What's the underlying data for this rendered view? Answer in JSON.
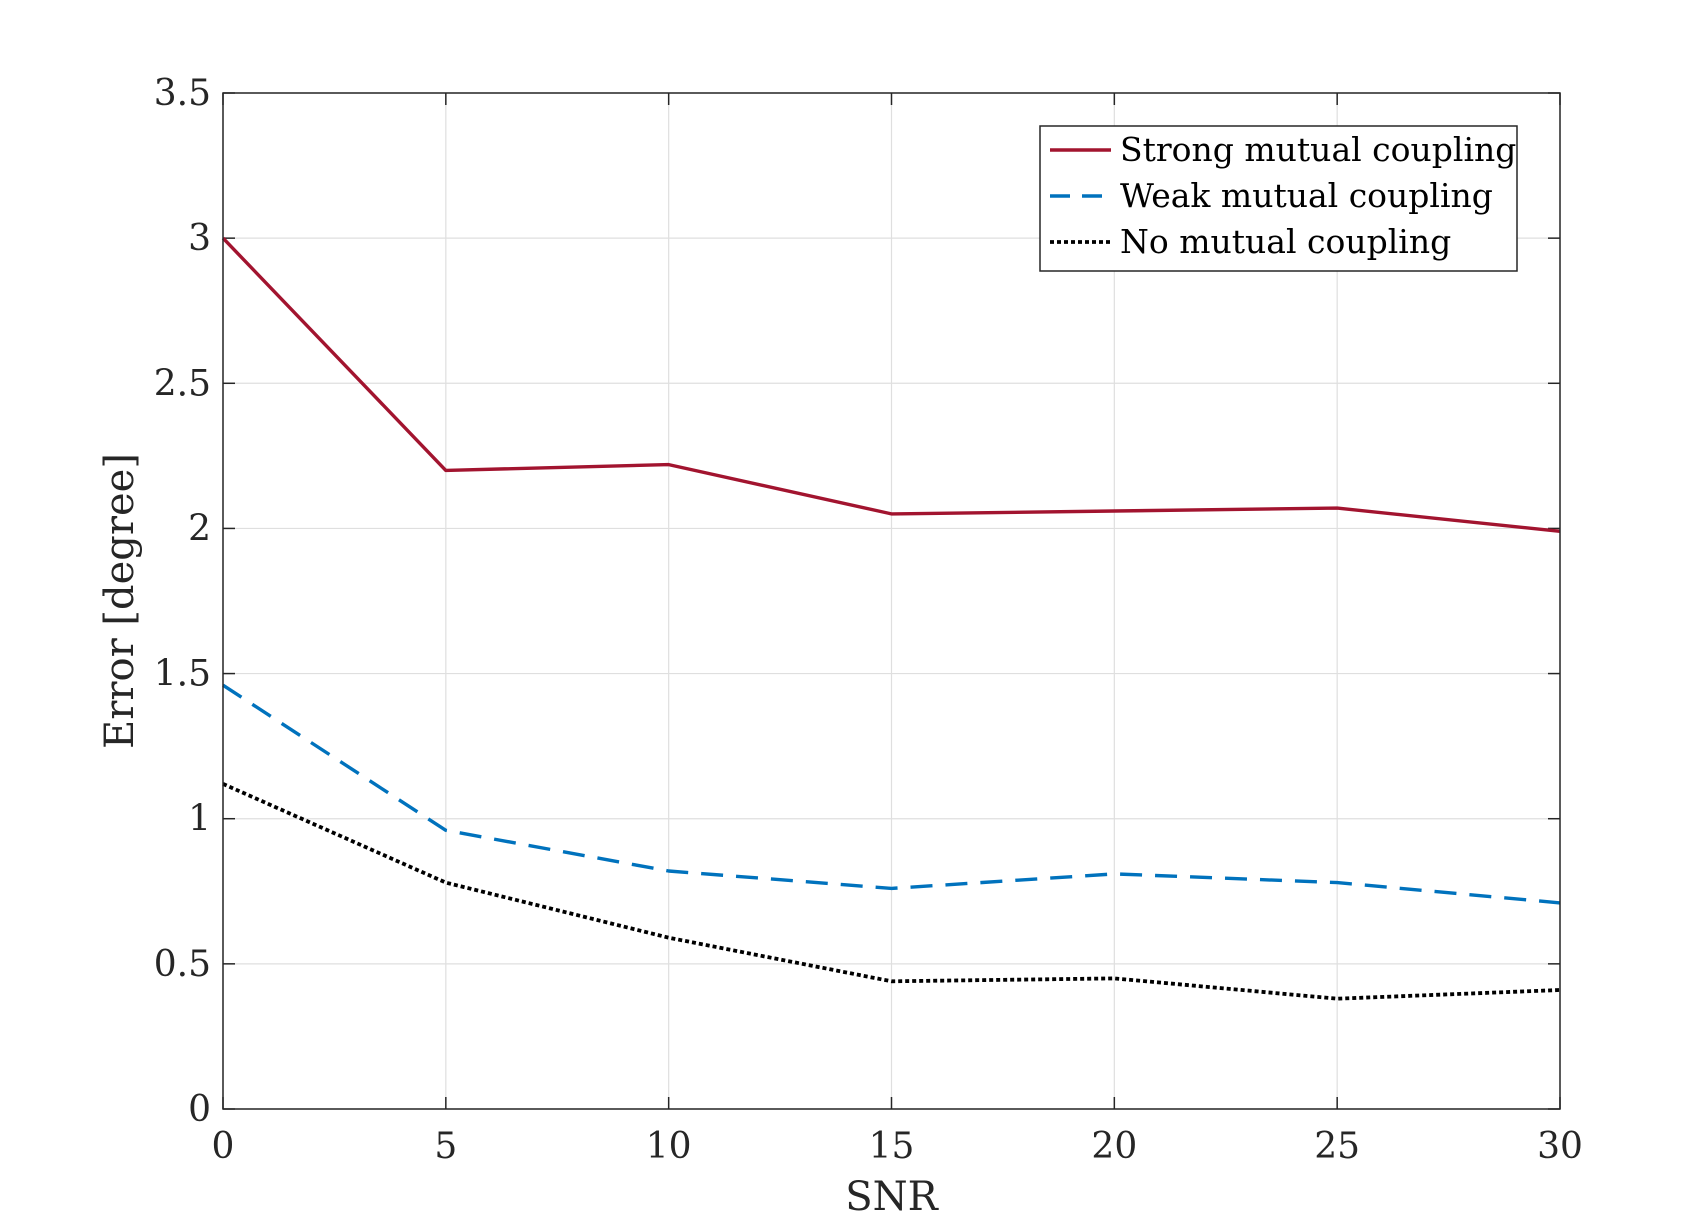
{
  "chart_data": {
    "type": "line",
    "title": "",
    "xlabel": "SNR",
    "ylabel": "Error [degree]",
    "x": [
      0,
      5,
      10,
      15,
      20,
      25,
      30
    ],
    "xlim": [
      0,
      30
    ],
    "ylim": [
      0,
      3.5
    ],
    "x_ticks": [
      "0",
      "5",
      "10",
      "15",
      "20",
      "25",
      "30"
    ],
    "y_ticks": [
      "0",
      "0.5",
      "1",
      "1.5",
      "2",
      "2.5",
      "3",
      "3.5"
    ],
    "x_tick_values": [
      0,
      5,
      10,
      15,
      20,
      25,
      30
    ],
    "y_tick_values": [
      0,
      0.5,
      1,
      1.5,
      2,
      2.5,
      3,
      3.5
    ],
    "grid": true,
    "legend_position": "top-right",
    "series": [
      {
        "name": "Strong mutual coupling",
        "values": [
          3.0,
          2.2,
          2.22,
          2.05,
          2.06,
          2.07,
          1.99
        ],
        "color": "#A2142F",
        "style": "solid"
      },
      {
        "name": "Weak mutual coupling",
        "values": [
          1.46,
          0.96,
          0.82,
          0.76,
          0.81,
          0.78,
          0.71
        ],
        "color": "#0072BD",
        "style": "dashed"
      },
      {
        "name": "No mutual coupling",
        "values": [
          1.12,
          0.78,
          0.59,
          0.44,
          0.45,
          0.38,
          0.41
        ],
        "color": "#000000",
        "style": "dotted"
      }
    ]
  }
}
